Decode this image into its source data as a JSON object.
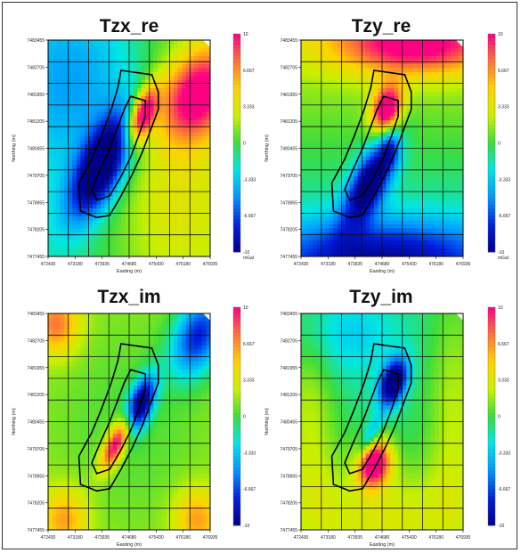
{
  "chart_data": [
    {
      "type": "heatmap",
      "title": "Tzx_re",
      "xlabel": "Easting (m)",
      "ylabel": "Northing (m)",
      "x_ticks": [
        "472430",
        "473180",
        "473935",
        "474680",
        "475430",
        "476180",
        "476935"
      ],
      "y_ticks": [
        "7483455",
        "7482705",
        "7481955",
        "7481205",
        "7480455",
        "7479705",
        "7478955",
        "7478205",
        "7477455"
      ],
      "colorbar": {
        "ticks": [
          "10",
          "6.667",
          "3.333",
          "0",
          "-3.333",
          "-6.667",
          "-10"
        ],
        "unit": "mGal",
        "range": [
          -10,
          10
        ]
      },
      "field": {
        "base": 0,
        "gradient": {
          "value": -2.6,
          "dx": -0.45,
          "dy": 0.05
        },
        "blobs": [
          {
            "x": 0.33,
            "y": 0.58,
            "value": -12,
            "sx": 0.09,
            "sy": 0.2,
            "rot": 0.62
          },
          {
            "x": 0.58,
            "y": 0.35,
            "value": 12,
            "sx": 0.05,
            "sy": 0.1,
            "rot": 0.5
          },
          {
            "x": 0.92,
            "y": 0.25,
            "value": 10,
            "sx": 0.13,
            "sy": 0.18,
            "rot": 0.9
          },
          {
            "x": 0.75,
            "y": 0.72,
            "value": 3,
            "sx": 0.25,
            "sy": 0.35,
            "rot": 0
          },
          {
            "x": 0.2,
            "y": 0.2,
            "value": -4,
            "sx": 0.3,
            "sy": 0.3,
            "rot": 0
          }
        ]
      }
    },
    {
      "type": "heatmap",
      "title": "Tzy_re",
      "xlabel": "Easting (m)",
      "ylabel": "Northing (m)",
      "x_ticks": [
        "472430",
        "473180",
        "473935",
        "474680",
        "475430",
        "476180",
        "476935"
      ],
      "y_ticks": [
        "7483455",
        "7482705",
        "7481955",
        "7481205",
        "7480455",
        "7479705",
        "7478955",
        "7478205",
        "7477455"
      ],
      "colorbar": {
        "ticks": [
          "10",
          "6.667",
          "3.333",
          "0",
          "-3.333",
          "-6.667",
          "-10"
        ],
        "unit": "mGal",
        "range": [
          -10,
          10
        ]
      },
      "field": {
        "base": 0,
        "gradient": {
          "value": 2.5,
          "dx": 0,
          "dy": -1.0
        },
        "blobs": [
          {
            "x": 0.53,
            "y": 0.32,
            "value": 12,
            "sx": 0.06,
            "sy": 0.08,
            "rot": 0.5
          },
          {
            "x": 0.43,
            "y": 0.65,
            "value": -11,
            "sx": 0.07,
            "sy": 0.16,
            "rot": 0.62
          },
          {
            "x": 0.7,
            "y": 0.02,
            "value": 9,
            "sx": 0.35,
            "sy": 0.1,
            "rot": 0
          },
          {
            "x": 0.5,
            "y": 1.0,
            "value": -7,
            "sx": 0.5,
            "sy": 0.12,
            "rot": 0
          },
          {
            "x": 0.55,
            "y": 0.5,
            "value": -4,
            "sx": 0.04,
            "sy": 0.06,
            "rot": 0
          }
        ]
      }
    },
    {
      "type": "heatmap",
      "title": "Tzx_im",
      "xlabel": "Easting (m)",
      "ylabel": "Northing (m)",
      "x_ticks": [
        "472430",
        "473180",
        "473935",
        "474680",
        "475430",
        "476180",
        "476935"
      ],
      "y_ticks": [
        "7483455",
        "7482705",
        "7481955",
        "7481205",
        "7480455",
        "7479705",
        "7478955",
        "7478205",
        "7477455"
      ],
      "colorbar": {
        "ticks": [
          "10",
          "6.667",
          "3.333",
          "0",
          "-3.333",
          "-6.667",
          "-10"
        ],
        "unit": "",
        "range": [
          -10,
          10
        ]
      },
      "field": {
        "base": 1.8,
        "gradient": {
          "value": 0,
          "dx": 0,
          "dy": 0
        },
        "blobs": [
          {
            "x": 0.57,
            "y": 0.42,
            "value": -12,
            "sx": 0.05,
            "sy": 0.1,
            "rot": 0.5
          },
          {
            "x": 0.42,
            "y": 0.6,
            "value": 10,
            "sx": 0.04,
            "sy": 0.1,
            "rot": 0.6
          },
          {
            "x": 0.93,
            "y": 0.1,
            "value": -9,
            "sx": 0.1,
            "sy": 0.15,
            "rot": 0.6
          },
          {
            "x": 0.05,
            "y": 0.05,
            "value": 6,
            "sx": 0.1,
            "sy": 0.1,
            "rot": 0
          },
          {
            "x": 0.1,
            "y": 0.95,
            "value": 5,
            "sx": 0.1,
            "sy": 0.1,
            "rot": 0
          },
          {
            "x": 0.92,
            "y": 0.95,
            "value": 5,
            "sx": 0.1,
            "sy": 0.1,
            "rot": 0
          },
          {
            "x": 0.5,
            "y": 0.5,
            "value": -1.5,
            "sx": 0.4,
            "sy": 0.4,
            "rot": 0
          }
        ]
      }
    },
    {
      "type": "heatmap",
      "title": "Tzy_im",
      "xlabel": "Easting (m)",
      "ylabel": "Northing (m)",
      "x_ticks": [
        "472430",
        "473180",
        "473935",
        "474680",
        "475430",
        "476180",
        "476935"
      ],
      "y_ticks": [
        "7483455",
        "7482705",
        "7481955",
        "7481205",
        "7480455",
        "7479705",
        "7478955",
        "7478205",
        "7477455"
      ],
      "colorbar": {
        "ticks": [
          "10",
          "6.667",
          "3.333",
          "0",
          "-3.333",
          "-6.667",
          "-10"
        ],
        "unit": "",
        "range": [
          -10,
          10
        ]
      },
      "field": {
        "base": -0.8,
        "gradient": {
          "value": 0,
          "dx": 0,
          "dy": 0
        },
        "blobs": [
          {
            "x": 0.57,
            "y": 0.32,
            "value": -12,
            "sx": 0.05,
            "sy": 0.08,
            "rot": 0.5
          },
          {
            "x": 0.42,
            "y": 0.58,
            "value": -5,
            "sx": 0.03,
            "sy": 0.08,
            "rot": 0.6
          },
          {
            "x": 0.45,
            "y": 0.69,
            "value": 12,
            "sx": 0.07,
            "sy": 0.08,
            "rot": 0.6
          },
          {
            "x": 0.5,
            "y": 0.95,
            "value": 4,
            "sx": 0.4,
            "sy": 0.18,
            "rot": 0
          },
          {
            "x": 0.05,
            "y": 0.5,
            "value": 3,
            "sx": 0.12,
            "sy": 0.4,
            "rot": 0
          },
          {
            "x": 0.95,
            "y": 0.5,
            "value": 3,
            "sx": 0.12,
            "sy": 0.4,
            "rot": 0
          },
          {
            "x": 0.25,
            "y": 0.1,
            "value": -2.5,
            "sx": 0.25,
            "sy": 0.15,
            "rot": 0
          }
        ]
      }
    }
  ]
}
